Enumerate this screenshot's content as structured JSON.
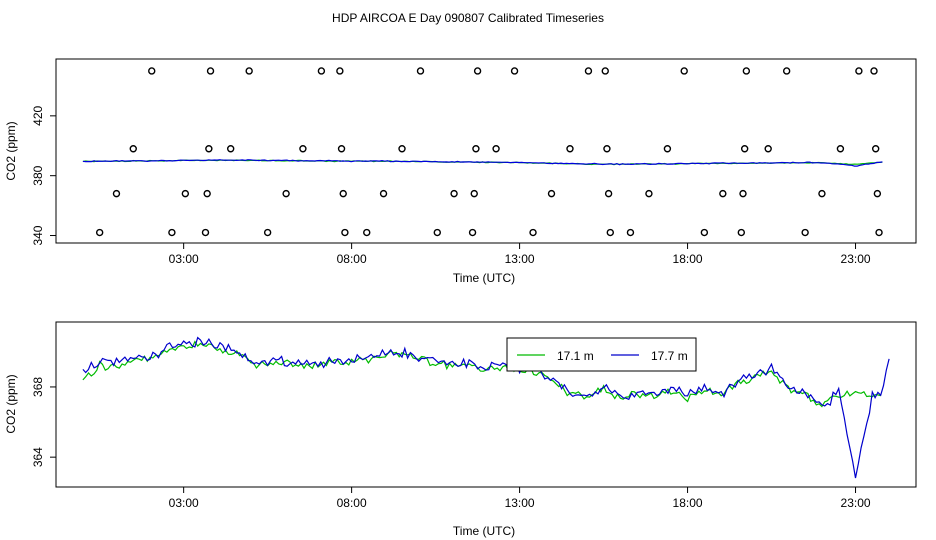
{
  "title": "HDP AIRCOA E  Day 090807  Calibrated Timeseries",
  "chart_data": [
    {
      "type": "scatter",
      "xlabel": "Time (UTC)",
      "ylabel": "CO2 (ppm)",
      "x_ticks": [
        3,
        8,
        13,
        18,
        23
      ],
      "x_tick_labels": [
        "03:00",
        "08:00",
        "13:00",
        "18:00",
        "23:00"
      ],
      "y_ticks": [
        340,
        380,
        420
      ],
      "y_tick_labels": [
        "340",
        "380",
        "420"
      ],
      "xlim": [
        -0.8,
        24.8
      ],
      "ylim": [
        335,
        458
      ],
      "grid": false,
      "calibration_points": [
        {
          "x": 0.5,
          "y": 342
        },
        {
          "x": 1.0,
          "y": 368
        },
        {
          "x": 1.5,
          "y": 398
        },
        {
          "x": 2.05,
          "y": 450
        },
        {
          "x": 2.65,
          "y": 342
        },
        {
          "x": 3.05,
          "y": 368
        },
        {
          "x": 3.65,
          "y": 342
        },
        {
          "x": 3.7,
          "y": 368
        },
        {
          "x": 3.75,
          "y": 398
        },
        {
          "x": 3.8,
          "y": 450
        },
        {
          "x": 4.4,
          "y": 398
        },
        {
          "x": 4.95,
          "y": 450
        },
        {
          "x": 5.5,
          "y": 342
        },
        {
          "x": 6.05,
          "y": 368
        },
        {
          "x": 6.55,
          "y": 398
        },
        {
          "x": 7.1,
          "y": 450
        },
        {
          "x": 7.65,
          "y": 450
        },
        {
          "x": 7.7,
          "y": 398
        },
        {
          "x": 7.75,
          "y": 368
        },
        {
          "x": 7.8,
          "y": 342
        },
        {
          "x": 8.45,
          "y": 342
        },
        {
          "x": 8.95,
          "y": 368
        },
        {
          "x": 9.5,
          "y": 398
        },
        {
          "x": 10.05,
          "y": 450
        },
        {
          "x": 10.55,
          "y": 342
        },
        {
          "x": 11.05,
          "y": 368
        },
        {
          "x": 11.6,
          "y": 342
        },
        {
          "x": 11.65,
          "y": 368
        },
        {
          "x": 11.7,
          "y": 398
        },
        {
          "x": 11.75,
          "y": 450
        },
        {
          "x": 12.3,
          "y": 398
        },
        {
          "x": 12.85,
          "y": 450
        },
        {
          "x": 13.4,
          "y": 342
        },
        {
          "x": 13.95,
          "y": 368
        },
        {
          "x": 14.5,
          "y": 398
        },
        {
          "x": 15.05,
          "y": 450
        },
        {
          "x": 15.55,
          "y": 450
        },
        {
          "x": 15.6,
          "y": 398
        },
        {
          "x": 15.65,
          "y": 368
        },
        {
          "x": 15.7,
          "y": 342
        },
        {
          "x": 16.3,
          "y": 342
        },
        {
          "x": 16.85,
          "y": 368
        },
        {
          "x": 17.4,
          "y": 398
        },
        {
          "x": 17.9,
          "y": 450
        },
        {
          "x": 18.5,
          "y": 342
        },
        {
          "x": 19.05,
          "y": 368
        },
        {
          "x": 19.6,
          "y": 342
        },
        {
          "x": 19.65,
          "y": 368
        },
        {
          "x": 19.7,
          "y": 398
        },
        {
          "x": 19.75,
          "y": 450
        },
        {
          "x": 20.4,
          "y": 398
        },
        {
          "x": 20.95,
          "y": 450
        },
        {
          "x": 21.5,
          "y": 342
        },
        {
          "x": 22.0,
          "y": 368
        },
        {
          "x": 22.55,
          "y": 398
        },
        {
          "x": 23.1,
          "y": 450
        },
        {
          "x": 23.55,
          "y": 450
        },
        {
          "x": 23.6,
          "y": 398
        },
        {
          "x": 23.65,
          "y": 368
        },
        {
          "x": 23.7,
          "y": 342
        }
      ],
      "series": [
        {
          "color": "#00bb00",
          "x": [
            0,
            1,
            2,
            3,
            4,
            5,
            6,
            7,
            8,
            9,
            10,
            11,
            12,
            13,
            14,
            15,
            16,
            17,
            18,
            19,
            20,
            21,
            22,
            23,
            23.8
          ],
          "values": [
            389.5,
            389.7,
            389.8,
            390.1,
            390.3,
            390.2,
            390.0,
            389.8,
            389.7,
            389.6,
            389.4,
            389.2,
            389.0,
            388.7,
            388.2,
            387.8,
            387.6,
            387.8,
            388.0,
            388.2,
            388.3,
            388.6,
            388.7,
            387.6,
            389.0
          ]
        },
        {
          "color": "#0000dd",
          "x": [
            0,
            1,
            2,
            3,
            4,
            5,
            6,
            7,
            8,
            9,
            10,
            11,
            12,
            13,
            14,
            15,
            16,
            17,
            18,
            19,
            20,
            21,
            22,
            23,
            23.8
          ],
          "values": [
            389.6,
            389.8,
            389.9,
            390.2,
            390.4,
            390.3,
            390.1,
            389.9,
            389.8,
            389.7,
            389.5,
            389.3,
            389.1,
            388.8,
            388.3,
            387.9,
            387.7,
            387.9,
            388.1,
            388.3,
            388.4,
            388.7,
            388.8,
            386.5,
            389.2
          ]
        }
      ]
    },
    {
      "type": "line",
      "xlabel": "Time (UTC)",
      "ylabel": "CO2 (ppm)",
      "x_ticks": [
        3,
        8,
        13,
        18,
        23
      ],
      "x_tick_labels": [
        "03:00",
        "08:00",
        "13:00",
        "18:00",
        "23:00"
      ],
      "y_ticks": [
        364,
        368
      ],
      "y_tick_labels": [
        "364",
        "368"
      ],
      "xlim": [
        -0.8,
        24.8
      ],
      "ylim": [
        362.3,
        371.7
      ],
      "grid": false,
      "legend_position": "top-center",
      "series": [
        {
          "name": "17.1 m",
          "color": "#00bb00",
          "x": [
            0.0,
            0.5,
            1.0,
            1.5,
            2.0,
            2.5,
            3.0,
            3.5,
            4.0,
            4.5,
            5.0,
            5.5,
            6.0,
            6.5,
            7.0,
            7.5,
            8.0,
            8.5,
            9.0,
            9.5,
            10.0,
            10.5,
            11.0,
            11.5,
            12.0,
            12.5,
            13.0,
            13.5,
            14.0,
            14.5,
            15.0,
            15.5,
            16.0,
            16.5,
            17.0,
            17.5,
            18.0,
            18.5,
            19.0,
            19.5,
            20.0,
            20.5,
            21.0,
            21.5,
            22.0,
            22.5,
            23.0,
            23.5,
            23.75
          ],
          "values": [
            368.4,
            369.2,
            369.1,
            369.6,
            369.5,
            370.1,
            370.3,
            370.5,
            370.2,
            370.0,
            369.4,
            369.2,
            369.4,
            369.2,
            369.3,
            369.4,
            369.5,
            369.6,
            369.8,
            369.9,
            369.6,
            369.4,
            369.2,
            369.3,
            369.0,
            369.1,
            369.0,
            368.9,
            368.3,
            367.6,
            367.4,
            367.9,
            367.3,
            367.6,
            367.5,
            367.8,
            367.4,
            367.9,
            367.5,
            368.2,
            368.6,
            368.9,
            367.9,
            367.5,
            367.0,
            367.6,
            367.6,
            367.4,
            367.5
          ]
        },
        {
          "name": "17.7 m",
          "color": "#0000cc",
          "x": [
            0.0,
            0.5,
            1.0,
            1.5,
            2.0,
            2.5,
            3.0,
            3.5,
            4.0,
            4.5,
            5.0,
            5.5,
            6.0,
            6.5,
            7.0,
            7.5,
            8.0,
            8.5,
            9.0,
            9.5,
            10.0,
            10.5,
            11.0,
            11.5,
            12.0,
            12.5,
            13.0,
            13.5,
            14.0,
            14.5,
            15.0,
            15.5,
            16.0,
            16.5,
            17.0,
            17.5,
            18.0,
            18.5,
            19.0,
            19.5,
            20.0,
            20.5,
            21.0,
            21.5,
            22.0,
            22.5,
            23.0,
            23.5,
            23.75,
            24.0
          ],
          "values": [
            369.0,
            369.3,
            369.4,
            369.7,
            369.6,
            370.2,
            370.4,
            370.6,
            370.3,
            370.1,
            369.5,
            369.3,
            369.5,
            369.3,
            369.4,
            369.5,
            369.6,
            369.7,
            369.9,
            370.0,
            369.7,
            369.5,
            369.3,
            369.4,
            369.1,
            369.2,
            369.1,
            369.0,
            368.4,
            367.7,
            367.5,
            368.0,
            367.4,
            367.7,
            367.6,
            367.9,
            367.5,
            368.0,
            367.6,
            368.3,
            368.7,
            369.0,
            368.0,
            367.6,
            366.8,
            367.8,
            362.9,
            367.5,
            367.6,
            369.6
          ]
        }
      ]
    }
  ]
}
